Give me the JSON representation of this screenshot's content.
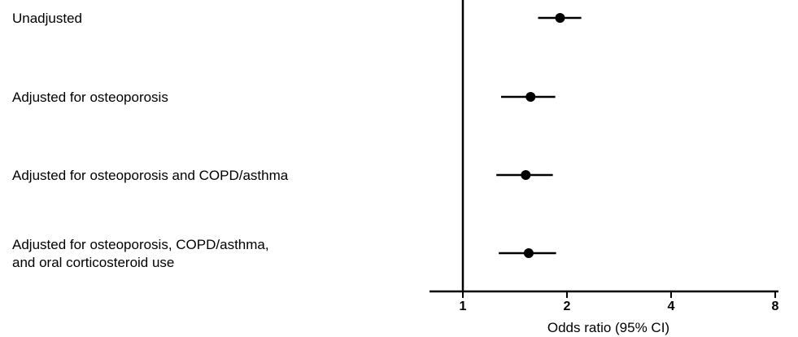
{
  "chart_data": {
    "type": "forest",
    "xscale": "log2",
    "xlim": [
      0.7,
      9.5
    ],
    "xticks": [
      1,
      2,
      4,
      8
    ],
    "xtick_labels": [
      "1",
      "2",
      "4",
      "8"
    ],
    "xlabel": "Odds ratio (95% CI)",
    "reference_line": 1,
    "grid": false,
    "rows": [
      {
        "label_lines": [
          "Unadjusted"
        ],
        "estimate": 1.91,
        "ci_low": 1.65,
        "ci_high": 2.2
      },
      {
        "label_lines": [
          "Adjusted for osteoporosis"
        ],
        "estimate": 1.57,
        "ci_low": 1.29,
        "ci_high": 1.85
      },
      {
        "label_lines": [
          "Adjusted for osteoporosis and COPD/asthma"
        ],
        "estimate": 1.52,
        "ci_low": 1.25,
        "ci_high": 1.82
      },
      {
        "label_lines": [
          "Adjusted for osteoporosis, COPD/asthma,",
          "and oral corticosteroid use"
        ],
        "estimate": 1.55,
        "ci_low": 1.27,
        "ci_high": 1.86
      }
    ]
  },
  "colors": {
    "ink": "#000000",
    "background": "#ffffff"
  }
}
